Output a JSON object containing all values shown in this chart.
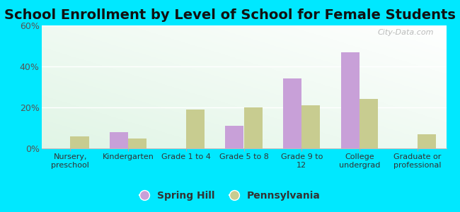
{
  "title": "School Enrollment by Level of School for Female Students",
  "categories": [
    "Nursery,\npreschool",
    "Kindergarten",
    "Grade 1 to 4",
    "Grade 5 to 8",
    "Grade 9 to\n12",
    "College\nundergrad",
    "Graduate or\nprofessional"
  ],
  "spring_hill": [
    0,
    8,
    0,
    11,
    34,
    47,
    0
  ],
  "pennsylvania": [
    6,
    5,
    19,
    20,
    21,
    24,
    7
  ],
  "bar_color_sh": "#c8a0d8",
  "bar_color_pa": "#c8cc90",
  "background_outer": "#00e8ff",
  "ylim": [
    0,
    60
  ],
  "yticks": [
    0,
    20,
    40,
    60
  ],
  "ytick_labels": [
    "0%",
    "20%",
    "40%",
    "60%"
  ],
  "title_fontsize": 14,
  "legend_labels": [
    "Spring Hill",
    "Pennsylvania"
  ],
  "watermark": "City-Data.com",
  "bar_width": 0.32
}
